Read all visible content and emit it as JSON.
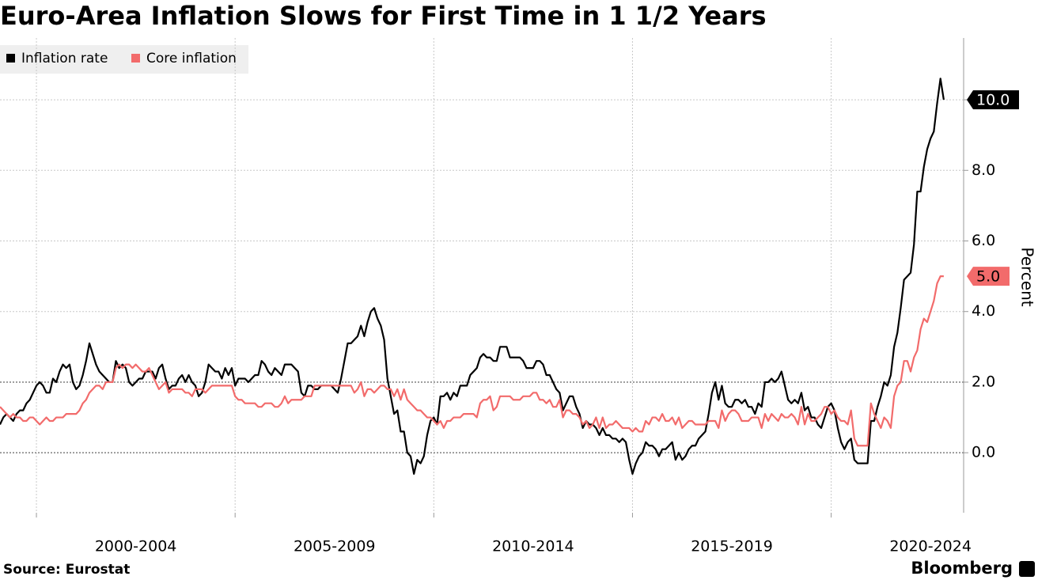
{
  "chart_data": {
    "type": "line",
    "title": "Euro-Area Inflation Slows for First Time in 1 1/2 Years",
    "y_label": "Percent",
    "source": "Source: Eurostat",
    "brand": "Bloomberg",
    "x": [
      "1999-02",
      "1999-03",
      "1999-04",
      "1999-05",
      "1999-06",
      "1999-07",
      "1999-08",
      "1999-09",
      "1999-10",
      "1999-11",
      "1999-12",
      "2000-01",
      "2000-02",
      "2000-03",
      "2000-04",
      "2000-05",
      "2000-06",
      "2000-07",
      "2000-08",
      "2000-09",
      "2000-10",
      "2000-11",
      "2000-12",
      "2001-01",
      "2001-02",
      "2001-03",
      "2001-04",
      "2001-05",
      "2001-06",
      "2001-07",
      "2001-08",
      "2001-09",
      "2001-10",
      "2001-11",
      "2001-12",
      "2002-01",
      "2002-02",
      "2002-03",
      "2002-04",
      "2002-05",
      "2002-06",
      "2002-07",
      "2002-08",
      "2002-09",
      "2002-10",
      "2002-11",
      "2002-12",
      "2003-01",
      "2003-02",
      "2003-03",
      "2003-04",
      "2003-05",
      "2003-06",
      "2003-07",
      "2003-08",
      "2003-09",
      "2003-10",
      "2003-11",
      "2003-12",
      "2004-01",
      "2004-02",
      "2004-03",
      "2004-04",
      "2004-05",
      "2004-06",
      "2004-07",
      "2004-08",
      "2004-09",
      "2004-10",
      "2004-11",
      "2004-12",
      "2005-01",
      "2005-02",
      "2005-03",
      "2005-04",
      "2005-05",
      "2005-06",
      "2005-07",
      "2005-08",
      "2005-09",
      "2005-10",
      "2005-11",
      "2005-12",
      "2006-01",
      "2006-02",
      "2006-03",
      "2006-04",
      "2006-05",
      "2006-06",
      "2006-07",
      "2006-08",
      "2006-09",
      "2006-10",
      "2006-11",
      "2006-12",
      "2007-01",
      "2007-02",
      "2007-03",
      "2007-04",
      "2007-05",
      "2007-06",
      "2007-07",
      "2007-08",
      "2007-09",
      "2007-10",
      "2007-11",
      "2007-12",
      "2008-01",
      "2008-02",
      "2008-03",
      "2008-04",
      "2008-05",
      "2008-06",
      "2008-07",
      "2008-08",
      "2008-09",
      "2008-10",
      "2008-11",
      "2008-12",
      "2009-01",
      "2009-02",
      "2009-03",
      "2009-04",
      "2009-05",
      "2009-06",
      "2009-07",
      "2009-08",
      "2009-09",
      "2009-10",
      "2009-11",
      "2009-12",
      "2010-01",
      "2010-02",
      "2010-03",
      "2010-04",
      "2010-05",
      "2010-06",
      "2010-07",
      "2010-08",
      "2010-09",
      "2010-10",
      "2010-11",
      "2010-12",
      "2011-01",
      "2011-02",
      "2011-03",
      "2011-04",
      "2011-05",
      "2011-06",
      "2011-07",
      "2011-08",
      "2011-09",
      "2011-10",
      "2011-11",
      "2011-12",
      "2012-01",
      "2012-02",
      "2012-03",
      "2012-04",
      "2012-05",
      "2012-06",
      "2012-07",
      "2012-08",
      "2012-09",
      "2012-10",
      "2012-11",
      "2012-12",
      "2013-01",
      "2013-02",
      "2013-03",
      "2013-04",
      "2013-05",
      "2013-06",
      "2013-07",
      "2013-08",
      "2013-09",
      "2013-10",
      "2013-11",
      "2013-12",
      "2014-01",
      "2014-02",
      "2014-03",
      "2014-04",
      "2014-05",
      "2014-06",
      "2014-07",
      "2014-08",
      "2014-09",
      "2014-10",
      "2014-11",
      "2014-12",
      "2015-01",
      "2015-02",
      "2015-03",
      "2015-04",
      "2015-05",
      "2015-06",
      "2015-07",
      "2015-08",
      "2015-09",
      "2015-10",
      "2015-11",
      "2015-12",
      "2016-01",
      "2016-02",
      "2016-03",
      "2016-04",
      "2016-05",
      "2016-06",
      "2016-07",
      "2016-08",
      "2016-09",
      "2016-10",
      "2016-11",
      "2016-12",
      "2017-01",
      "2017-02",
      "2017-03",
      "2017-04",
      "2017-05",
      "2017-06",
      "2017-07",
      "2017-08",
      "2017-09",
      "2017-10",
      "2017-11",
      "2017-12",
      "2018-01",
      "2018-02",
      "2018-03",
      "2018-04",
      "2018-05",
      "2018-06",
      "2018-07",
      "2018-08",
      "2018-09",
      "2018-10",
      "2018-11",
      "2018-12",
      "2019-01",
      "2019-02",
      "2019-03",
      "2019-04",
      "2019-05",
      "2019-06",
      "2019-07",
      "2019-08",
      "2019-09",
      "2019-10",
      "2019-11",
      "2019-12",
      "2020-01",
      "2020-02",
      "2020-03",
      "2020-04",
      "2020-05",
      "2020-06",
      "2020-07",
      "2020-08",
      "2020-09",
      "2020-10",
      "2020-11",
      "2020-12",
      "2021-01",
      "2021-02",
      "2021-03",
      "2021-04",
      "2021-05",
      "2021-06",
      "2021-07",
      "2021-08",
      "2021-09",
      "2021-10",
      "2021-11",
      "2021-12",
      "2022-01",
      "2022-02",
      "2022-03",
      "2022-04",
      "2022-05",
      "2022-06",
      "2022-07",
      "2022-08",
      "2022-09",
      "2022-10",
      "2022-11"
    ],
    "series": [
      {
        "name": "Inflation rate",
        "color": "#000000",
        "end_label": "10.0",
        "values": [
          0.8,
          1.0,
          1.1,
          1.0,
          0.9,
          1.1,
          1.2,
          1.2,
          1.4,
          1.5,
          1.7,
          1.9,
          2.0,
          1.9,
          1.7,
          1.7,
          2.1,
          2.0,
          2.3,
          2.5,
          2.4,
          2.5,
          2.0,
          1.8,
          1.9,
          2.2,
          2.6,
          3.1,
          2.8,
          2.5,
          2.3,
          2.2,
          2.1,
          2.0,
          2.0,
          2.6,
          2.4,
          2.5,
          2.4,
          2.0,
          1.9,
          2.0,
          2.1,
          2.1,
          2.3,
          2.3,
          2.3,
          2.1,
          2.4,
          2.5,
          2.1,
          1.8,
          1.9,
          1.9,
          2.1,
          2.2,
          2.0,
          2.2,
          2.0,
          1.9,
          1.6,
          1.7,
          2.0,
          2.5,
          2.4,
          2.3,
          2.3,
          2.1,
          2.4,
          2.2,
          2.4,
          1.9,
          2.1,
          2.1,
          2.1,
          2.0,
          2.1,
          2.2,
          2.2,
          2.6,
          2.5,
          2.3,
          2.2,
          2.4,
          2.3,
          2.2,
          2.5,
          2.5,
          2.5,
          2.4,
          2.3,
          1.7,
          1.6,
          1.9,
          1.9,
          1.8,
          1.8,
          1.9,
          1.9,
          1.9,
          1.9,
          1.8,
          1.7,
          2.1,
          2.6,
          3.1,
          3.1,
          3.2,
          3.3,
          3.6,
          3.3,
          3.7,
          4.0,
          4.1,
          3.8,
          3.6,
          3.2,
          2.1,
          1.6,
          1.1,
          1.2,
          0.6,
          0.6,
          0.0,
          -0.1,
          -0.6,
          -0.2,
          -0.3,
          -0.1,
          0.5,
          0.9,
          1.0,
          0.8,
          1.6,
          1.6,
          1.7,
          1.5,
          1.7,
          1.6,
          1.9,
          1.9,
          1.9,
          2.2,
          2.3,
          2.4,
          2.7,
          2.8,
          2.7,
          2.7,
          2.6,
          2.6,
          3.0,
          3.0,
          3.0,
          2.7,
          2.7,
          2.7,
          2.7,
          2.6,
          2.4,
          2.4,
          2.4,
          2.6,
          2.6,
          2.5,
          2.2,
          2.2,
          2.0,
          1.8,
          1.7,
          1.2,
          1.4,
          1.6,
          1.6,
          1.3,
          1.1,
          0.7,
          0.9,
          0.8,
          0.8,
          0.7,
          0.5,
          0.7,
          0.5,
          0.5,
          0.4,
          0.4,
          0.3,
          0.4,
          0.3,
          -0.2,
          -0.6,
          -0.3,
          -0.1,
          0.0,
          0.3,
          0.2,
          0.2,
          0.1,
          -0.1,
          0.1,
          0.1,
          0.2,
          0.3,
          -0.2,
          0.0,
          -0.2,
          -0.1,
          0.1,
          0.2,
          0.2,
          0.4,
          0.5,
          0.6,
          1.1,
          1.7,
          2.0,
          1.5,
          1.9,
          1.4,
          1.3,
          1.3,
          1.5,
          1.5,
          1.4,
          1.5,
          1.3,
          1.3,
          1.1,
          1.4,
          1.3,
          2.0,
          2.0,
          2.1,
          2.0,
          2.1,
          2.3,
          1.9,
          1.5,
          1.4,
          1.5,
          1.4,
          1.7,
          1.2,
          1.3,
          1.0,
          1.0,
          0.8,
          0.7,
          1.0,
          1.3,
          1.4,
          1.2,
          0.7,
          0.3,
          0.1,
          0.3,
          0.4,
          -0.2,
          -0.3,
          -0.3,
          -0.3,
          -0.3,
          0.9,
          0.9,
          1.3,
          1.6,
          2.0,
          1.9,
          2.2,
          3.0,
          3.4,
          4.1,
          4.9,
          5.0,
          5.1,
          5.9,
          7.4,
          7.4,
          8.1,
          8.6,
          8.9,
          9.1,
          9.9,
          10.6,
          10.0
        ]
      },
      {
        "name": "Core inflation",
        "color": "#f26b6b",
        "end_label": "5.0",
        "values": [
          1.3,
          1.2,
          1.1,
          1.0,
          1.1,
          1.0,
          1.0,
          0.9,
          0.9,
          1.0,
          1.0,
          0.9,
          0.8,
          0.9,
          1.0,
          0.9,
          0.9,
          1.0,
          1.0,
          1.0,
          1.1,
          1.1,
          1.1,
          1.1,
          1.2,
          1.4,
          1.5,
          1.7,
          1.8,
          1.9,
          1.9,
          1.8,
          2.0,
          2.0,
          2.0,
          2.4,
          2.5,
          2.4,
          2.5,
          2.5,
          2.4,
          2.5,
          2.4,
          2.3,
          2.3,
          2.4,
          2.2,
          2.0,
          1.8,
          1.9,
          2.0,
          1.7,
          1.8,
          1.8,
          1.8,
          1.8,
          1.7,
          1.7,
          1.6,
          1.8,
          1.8,
          1.8,
          1.7,
          1.8,
          1.9,
          1.9,
          1.9,
          1.9,
          1.9,
          1.9,
          1.9,
          1.6,
          1.5,
          1.5,
          1.4,
          1.4,
          1.4,
          1.4,
          1.3,
          1.3,
          1.4,
          1.4,
          1.4,
          1.3,
          1.3,
          1.4,
          1.6,
          1.4,
          1.5,
          1.5,
          1.5,
          1.5,
          1.6,
          1.6,
          1.6,
          1.9,
          1.9,
          1.9,
          1.9,
          1.9,
          1.9,
          1.9,
          1.9,
          1.9,
          1.9,
          1.9,
          1.9,
          1.7,
          1.8,
          2.0,
          1.6,
          1.8,
          1.8,
          1.7,
          1.8,
          1.9,
          1.9,
          1.8,
          1.8,
          1.6,
          1.8,
          1.5,
          1.8,
          1.5,
          1.4,
          1.3,
          1.2,
          1.2,
          1.1,
          1.0,
          1.0,
          0.9,
          0.8,
          0.9,
          0.7,
          0.9,
          0.9,
          1.0,
          1.0,
          1.0,
          1.1,
          1.1,
          1.1,
          1.1,
          1.0,
          1.4,
          1.5,
          1.5,
          1.6,
          1.2,
          1.3,
          1.6,
          1.6,
          1.6,
          1.6,
          1.5,
          1.5,
          1.5,
          1.6,
          1.6,
          1.6,
          1.7,
          1.7,
          1.5,
          1.5,
          1.4,
          1.5,
          1.3,
          1.3,
          1.5,
          1.0,
          1.2,
          1.2,
          1.1,
          1.1,
          1.0,
          0.8,
          0.9,
          0.7,
          0.8,
          1.0,
          0.7,
          1.0,
          0.7,
          0.8,
          0.8,
          0.9,
          0.8,
          0.7,
          0.7,
          0.7,
          0.6,
          0.7,
          0.6,
          0.6,
          0.9,
          0.8,
          1.0,
          1.0,
          0.9,
          1.1,
          0.9,
          0.9,
          1.0,
          0.8,
          1.0,
          0.7,
          0.8,
          0.9,
          0.9,
          0.8,
          0.8,
          0.8,
          0.8,
          0.9,
          0.9,
          0.9,
          0.7,
          1.2,
          0.9,
          1.1,
          1.2,
          1.2,
          1.1,
          0.9,
          0.9,
          0.9,
          1.0,
          1.0,
          1.0,
          0.7,
          1.1,
          0.9,
          1.1,
          1.0,
          0.9,
          1.1,
          1.0,
          1.0,
          1.1,
          1.0,
          0.8,
          1.3,
          0.8,
          1.1,
          0.9,
          0.9,
          1.0,
          1.1,
          1.3,
          1.3,
          1.1,
          1.2,
          1.0,
          0.9,
          0.9,
          0.8,
          1.2,
          0.4,
          0.2,
          0.2,
          0.2,
          0.2,
          1.4,
          1.1,
          0.9,
          0.7,
          1.0,
          0.9,
          0.7,
          1.6,
          1.9,
          2.0,
          2.6,
          2.6,
          2.3,
          2.7,
          2.9,
          3.5,
          3.8,
          3.7,
          4.0,
          4.3,
          4.8,
          5.0,
          5.0
        ]
      }
    ],
    "xlim": [
      "1999-02",
      "2023-05"
    ],
    "xticks": [
      {
        "value": "2000-01",
        "label": "2000-2004"
      },
      {
        "value": "2005-01",
        "label": "2005-2009"
      },
      {
        "value": "2010-01",
        "label": "2010-2014"
      },
      {
        "value": "2015-01",
        "label": "2015-2019"
      },
      {
        "value": "2020-01",
        "label": "2020-2024"
      }
    ],
    "ylim": [
      -1.7,
      11.75
    ],
    "yticks": [
      {
        "value": 0,
        "label": "0.0"
      },
      {
        "value": 2,
        "label": "2.0"
      },
      {
        "value": 4,
        "label": "4.0"
      },
      {
        "value": 6,
        "label": "6.0"
      },
      {
        "value": 8,
        "label": "8.0"
      },
      {
        "value": 10,
        "label": "10.0"
      }
    ],
    "grid": true,
    "legend": "top-left"
  }
}
